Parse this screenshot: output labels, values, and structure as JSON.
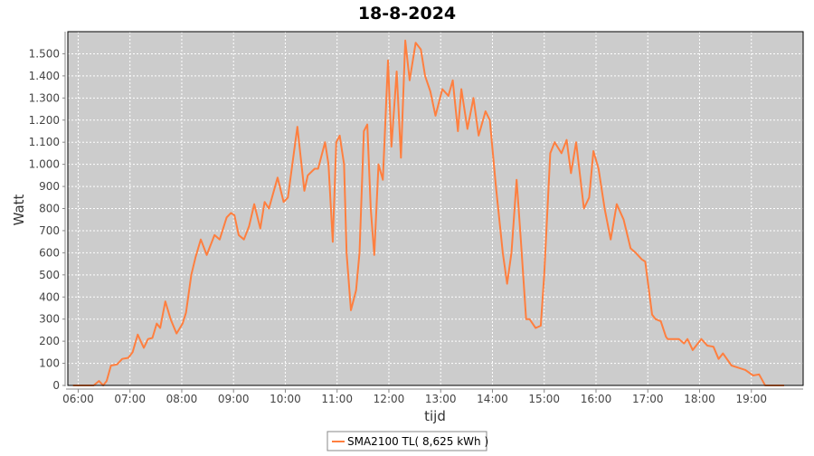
{
  "chart_data": {
    "type": "line",
    "title": "18-8-2024",
    "xlabel": "tijd",
    "ylabel": "Watt",
    "xlim": [
      "05:48",
      "20:00"
    ],
    "ylim": [
      0,
      1600
    ],
    "grid": true,
    "legend_placement": "bottom",
    "x_ticks": [
      "06:00",
      "07:00",
      "08:00",
      "09:00",
      "10:00",
      "11:00",
      "12:00",
      "13:00",
      "14:00",
      "15:00",
      "16:00",
      "17:00",
      "18:00",
      "19:00"
    ],
    "y_ticks": [
      0,
      100,
      200,
      300,
      400,
      500,
      600,
      700,
      800,
      900,
      1000,
      1100,
      1200,
      1300,
      1400,
      1500
    ],
    "y_tick_labels": [
      "0",
      "100",
      "200",
      "300",
      "400",
      "500",
      "600",
      "700",
      "800",
      "900",
      "1.000",
      "1.100",
      "1.200",
      "1.300",
      "1.400",
      "1.500"
    ],
    "colors": {
      "series": "#ff7f3f",
      "plot_background": "#cccccc",
      "grid": "#ffffff"
    },
    "series": [
      {
        "name": "SMA2100 TL( 8,625 kWh )",
        "points": [
          [
            "05:54",
            0
          ],
          [
            "06:18",
            0
          ],
          [
            "06:24",
            20
          ],
          [
            "06:29",
            0
          ],
          [
            "06:33",
            20
          ],
          [
            "06:38",
            90
          ],
          [
            "06:45",
            95
          ],
          [
            "06:51",
            120
          ],
          [
            "06:58",
            125
          ],
          [
            "07:03",
            150
          ],
          [
            "07:09",
            230
          ],
          [
            "07:16",
            170
          ],
          [
            "07:21",
            210
          ],
          [
            "07:26",
            215
          ],
          [
            "07:31",
            280
          ],
          [
            "07:35",
            260
          ],
          [
            "07:41",
            380
          ],
          [
            "07:47",
            300
          ],
          [
            "07:54",
            235
          ],
          [
            "08:01",
            280
          ],
          [
            "08:05",
            330
          ],
          [
            "08:11",
            500
          ],
          [
            "08:16",
            580
          ],
          [
            "08:22",
            660
          ],
          [
            "08:29",
            590
          ],
          [
            "08:38",
            680
          ],
          [
            "08:44",
            660
          ],
          [
            "08:52",
            760
          ],
          [
            "08:57",
            780
          ],
          [
            "09:01",
            770
          ],
          [
            "09:06",
            680
          ],
          [
            "09:12",
            660
          ],
          [
            "09:18",
            720
          ],
          [
            "09:24",
            820
          ],
          [
            "09:31",
            710
          ],
          [
            "09:36",
            830
          ],
          [
            "09:41",
            800
          ],
          [
            "09:51",
            940
          ],
          [
            "09:58",
            830
          ],
          [
            "10:03",
            850
          ],
          [
            "10:14",
            1170
          ],
          [
            "10:22",
            880
          ],
          [
            "10:26",
            950
          ],
          [
            "10:34",
            980
          ],
          [
            "10:38",
            980
          ],
          [
            "10:46",
            1100
          ],
          [
            "10:50",
            1000
          ],
          [
            "10:55",
            650
          ],
          [
            "10:59",
            1100
          ],
          [
            "11:03",
            1130
          ],
          [
            "11:08",
            1000
          ],
          [
            "11:11",
            600
          ],
          [
            "11:16",
            340
          ],
          [
            "11:22",
            430
          ],
          [
            "11:26",
            600
          ],
          [
            "11:31",
            1150
          ],
          [
            "11:35",
            1180
          ],
          [
            "11:39",
            800
          ],
          [
            "11:43",
            590
          ],
          [
            "11:48",
            1000
          ],
          [
            "11:53",
            930
          ],
          [
            "11:59",
            1470
          ],
          [
            "12:03",
            1080
          ],
          [
            "12:09",
            1420
          ],
          [
            "12:14",
            1030
          ],
          [
            "12:19",
            1560
          ],
          [
            "12:24",
            1380
          ],
          [
            "12:31",
            1550
          ],
          [
            "12:37",
            1520
          ],
          [
            "12:42",
            1400
          ],
          [
            "12:48",
            1330
          ],
          [
            "12:54",
            1220
          ],
          [
            "13:02",
            1340
          ],
          [
            "13:09",
            1310
          ],
          [
            "13:14",
            1380
          ],
          [
            "13:20",
            1150
          ],
          [
            "13:24",
            1340
          ],
          [
            "13:31",
            1160
          ],
          [
            "13:38",
            1300
          ],
          [
            "13:44",
            1130
          ],
          [
            "13:52",
            1240
          ],
          [
            "13:57",
            1200
          ],
          [
            "14:04",
            900
          ],
          [
            "14:12",
            600
          ],
          [
            "14:17",
            460
          ],
          [
            "14:22",
            600
          ],
          [
            "14:28",
            930
          ],
          [
            "14:33",
            650
          ],
          [
            "14:39",
            300
          ],
          [
            "14:43",
            300
          ],
          [
            "14:50",
            260
          ],
          [
            "14:56",
            270
          ],
          [
            "15:00",
            500
          ],
          [
            "15:07",
            1050
          ],
          [
            "15:12",
            1100
          ],
          [
            "15:20",
            1050
          ],
          [
            "15:26",
            1110
          ],
          [
            "15:31",
            960
          ],
          [
            "15:37",
            1100
          ],
          [
            "15:46",
            800
          ],
          [
            "15:52",
            850
          ],
          [
            "15:57",
            1060
          ],
          [
            "16:03",
            980
          ],
          [
            "16:10",
            800
          ],
          [
            "16:17",
            660
          ],
          [
            "16:24",
            820
          ],
          [
            "16:32",
            750
          ],
          [
            "16:40",
            620
          ],
          [
            "16:46",
            600
          ],
          [
            "16:53",
            570
          ],
          [
            "16:57",
            560
          ],
          [
            "17:05",
            320
          ],
          [
            "17:09",
            300
          ],
          [
            "17:15",
            290
          ],
          [
            "17:21",
            220
          ],
          [
            "17:23",
            210
          ],
          [
            "17:36",
            210
          ],
          [
            "17:42",
            190
          ],
          [
            "17:46",
            210
          ],
          [
            "17:52",
            160
          ],
          [
            "18:02",
            210
          ],
          [
            "18:09",
            180
          ],
          [
            "18:16",
            175
          ],
          [
            "18:22",
            120
          ],
          [
            "18:27",
            145
          ],
          [
            "18:37",
            90
          ],
          [
            "18:45",
            80
          ],
          [
            "18:53",
            70
          ],
          [
            "19:02",
            45
          ],
          [
            "19:09",
            50
          ],
          [
            "19:16",
            0
          ],
          [
            "19:38",
            0
          ]
        ]
      }
    ]
  }
}
